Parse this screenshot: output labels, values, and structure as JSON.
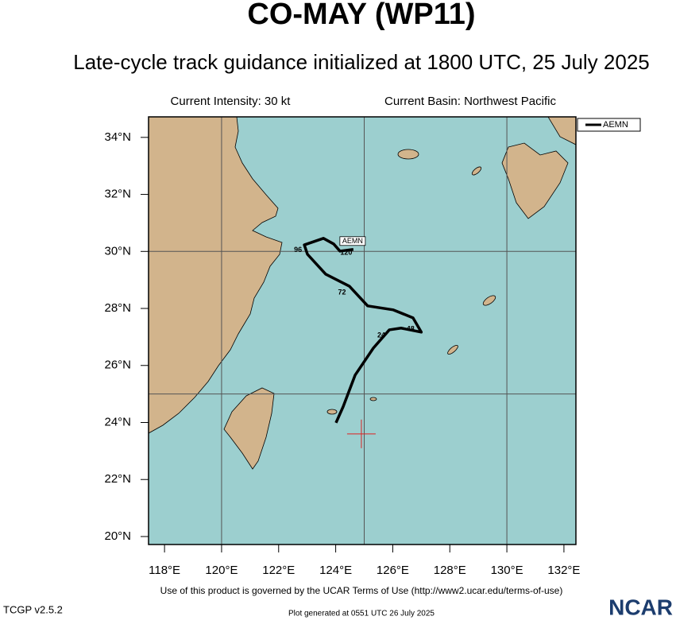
{
  "header": {
    "title": "CO-MAY (WP11)",
    "subtitle": "Late-cycle track guidance initialized at 1800 UTC, 25 July 2025",
    "intensity": "Current Intensity: 30 kt",
    "basin": "Current Basin: Northwest Pacific"
  },
  "map": {
    "lon_range": [
      117.44,
      132.42
    ],
    "lat_range": [
      19.72,
      34.72
    ],
    "lon_ticks": [
      {
        "value": 118,
        "label": "118°E"
      },
      {
        "value": 120,
        "label": "120°E"
      },
      {
        "value": 122,
        "label": "122°E"
      },
      {
        "value": 124,
        "label": "124°E"
      },
      {
        "value": 126,
        "label": "126°E"
      },
      {
        "value": 128,
        "label": "128°E"
      },
      {
        "value": 130,
        "label": "130°E"
      },
      {
        "value": 132,
        "label": "132°E"
      }
    ],
    "lat_ticks": [
      {
        "value": 20,
        "label": "20°N"
      },
      {
        "value": 22,
        "label": "22°N"
      },
      {
        "value": 24,
        "label": "24°N"
      },
      {
        "value": 26,
        "label": "26°N"
      },
      {
        "value": 28,
        "label": "28°N"
      },
      {
        "value": 30,
        "label": "30°N"
      },
      {
        "value": 32,
        "label": "32°N"
      },
      {
        "value": 34,
        "label": "34°N"
      }
    ],
    "grid_lons": [
      120,
      125,
      130
    ],
    "grid_lats": [
      25,
      30
    ],
    "current_position": {
      "lon": 124.9,
      "lat": 23.6
    }
  },
  "tracks": [
    {
      "name": "AEMN",
      "color": "#000000",
      "lon": [
        124.01,
        124.26,
        124.68,
        125.32,
        125.88,
        126.29,
        127.0,
        126.71,
        126.02,
        125.12,
        124.48,
        123.65,
        123.01,
        122.9,
        123.57,
        123.93,
        124.15,
        124.62
      ],
      "lat": [
        23.99,
        24.55,
        25.66,
        26.61,
        27.25,
        27.31,
        27.17,
        27.67,
        27.95,
        28.09,
        28.78,
        29.2,
        29.9,
        30.23,
        30.46,
        30.26,
        30.01,
        30.07
      ],
      "hour_labels": [
        {
          "label": "24",
          "lon": 125.6,
          "lat": 27.05
        },
        {
          "label": "48",
          "lon": 126.62,
          "lat": 27.27
        },
        {
          "label": "72",
          "lon": 124.22,
          "lat": 28.55
        },
        {
          "label": "96",
          "lon": 122.68,
          "lat": 30.05
        },
        {
          "label": "120",
          "lon": 124.37,
          "lat": 29.95
        }
      ]
    }
  ],
  "footer": {
    "terms": "Use of this product is governed by the UCAR Terms of Use (http://www2.ucar.edu/terms-of-use)",
    "version": "TCGP v2.5.2",
    "generated": "Plot generated at 0551 UTC  26 July 2025",
    "logo": "NCAR"
  }
}
